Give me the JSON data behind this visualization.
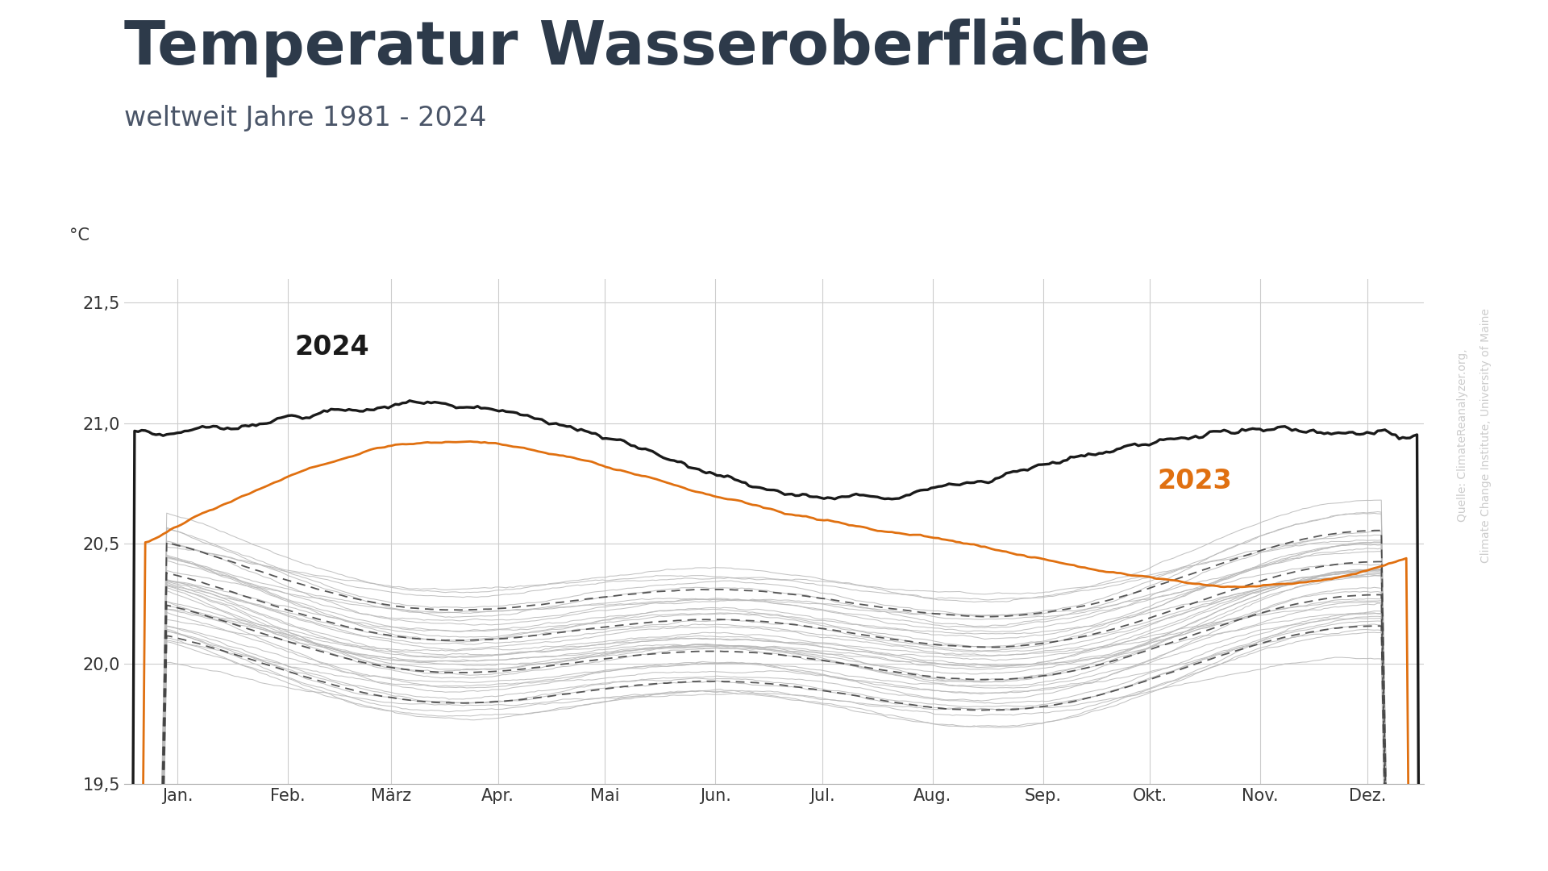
{
  "title": "Temperatur Wasseroberfläche",
  "subtitle": "weltweit Jahre 1981 - 2024",
  "ylabel": "°C",
  "source_line1": "Quelle: ClimateReanalyzer.org,",
  "source_line2": "Climate Change Institute, University of Maine",
  "title_color": "#2d3a4a",
  "subtitle_color": "#4a5568",
  "label_2024": "2024",
  "label_2023": "2023",
  "color_2024": "#1a1a1a",
  "color_2023": "#e07010",
  "color_historical": "#b8b8b8",
  "color_dashed": "#444444",
  "ylim": [
    19.5,
    21.6
  ],
  "yticks": [
    19.5,
    20.0,
    20.5,
    21.0,
    21.5
  ],
  "ytick_labels": [
    "19,5",
    "20,0",
    "20,5",
    "21,0",
    "21,5"
  ],
  "months": [
    "Jan.",
    "Feb.",
    "März",
    "Apr.",
    "Mai",
    "Jun.",
    "Jul.",
    "Aug.",
    "Sep.",
    "Okt.",
    "Nov.",
    "Dez."
  ],
  "bg_color": "#ffffff",
  "grid_color": "#cccccc",
  "n_historical": 38,
  "n_dashed": 4
}
